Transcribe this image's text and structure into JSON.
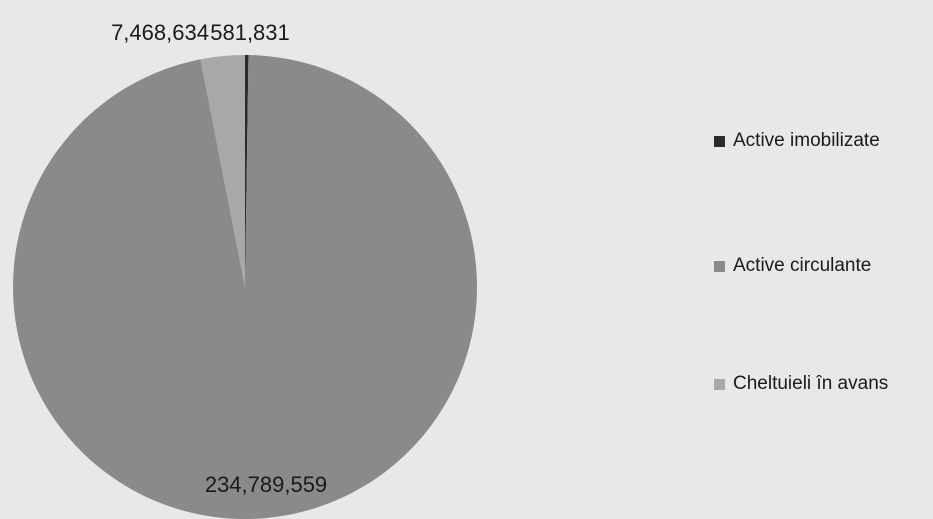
{
  "chart_data": {
    "type": "pie",
    "title": "",
    "categories": [
      "Active imobilizate",
      "Active circulante",
      "Cheltuieli în avans"
    ],
    "values": [
      581831,
      234789559,
      7468634
    ],
    "data_labels": [
      "581,831",
      "234,789,559",
      "7,468,634"
    ],
    "colors": [
      "#2b2b2b",
      "#8a8a8a",
      "#a8a8a8"
    ],
    "start_angle_deg": 0,
    "direction": "clockwise",
    "legend_position": "right"
  }
}
